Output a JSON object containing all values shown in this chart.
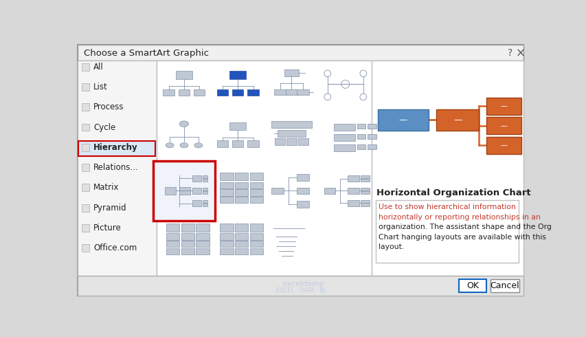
{
  "title": "Choose a SmartArt Graphic",
  "bg_color": "#d8d8d8",
  "dialog_bg": "#ffffff",
  "header_bg": "#f0f0f0",
  "header_text_color": "#222222",
  "sidebar_items": [
    "All",
    "List",
    "Process",
    "Cycle",
    "Hierarchy",
    "Relations...",
    "Matrix",
    "Pyramid",
    "Picture",
    "Office.com"
  ],
  "sidebar_selected_idx": 4,
  "preview_title": "Horizontal Organization Chart",
  "preview_line1": "Use to show hierarchical information",
  "preview_line2": "horizontally or reporting relationships in an",
  "preview_line3": "organization. The assistant shape and the Org",
  "preview_line4": "Chart hanging layouts are available with this",
  "preview_line5": "layout.",
  "red_text_color": "#c0392b",
  "dark_text_color": "#222222",
  "blue_box_color": "#5b8fc4",
  "orange_box_color": "#d4632a",
  "connector_color": "#d4632a",
  "thumb_color": "#c0c8d4",
  "thumb_border": "#8090a8",
  "thumb_line": "#8090a8",
  "blue_thumb_color": "#2255bb",
  "selected_border": "#cc0000",
  "selected_fill": "#f0f4fa",
  "ok_border": "#1565c0",
  "footer_bg": "#e4e4e4",
  "panel_border": "#c0c0c0",
  "watermark_text": "exceldemy",
  "watermark_sub": "EXCEL · DATA · BI",
  "watermark_color": "#b8c8dc"
}
